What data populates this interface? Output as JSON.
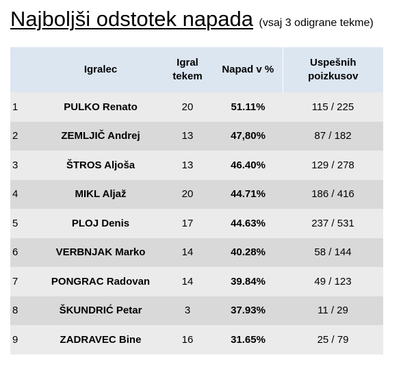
{
  "title": {
    "main": "Najboljši odstotek napada",
    "subtitle": "(vsaj 3 odigrane tekme)"
  },
  "headers": {
    "player": "Igralec",
    "games_line1": "Igral",
    "games_line2": "tekem",
    "attack_pct": "Napad v %",
    "successful_line1": "Uspešnih",
    "successful_line2": "poizkusov"
  },
  "rows": [
    {
      "rank": "1",
      "name": "PULKO Renato",
      "games": "20",
      "pct": "51.11%",
      "attempts": "115 / 225"
    },
    {
      "rank": "2",
      "name": "ZEMLJIČ Andrej",
      "games": "13",
      "pct": "47,80%",
      "attempts": "87 / 182"
    },
    {
      "rank": "3",
      "name": "ŠTROS Aljoša",
      "games": "13",
      "pct": "46.40%",
      "attempts": "129 / 278"
    },
    {
      "rank": "4",
      "name": "MIKL Aljaž",
      "games": "20",
      "pct": "44.71%",
      "attempts": "186 / 416"
    },
    {
      "rank": "5",
      "name": "PLOJ Denis",
      "games": "17",
      "pct": "44.63%",
      "attempts": "237 / 531"
    },
    {
      "rank": "6",
      "name": "VERBNJAK Marko",
      "games": "14",
      "pct": "40.28%",
      "attempts": "58 / 144"
    },
    {
      "rank": "7",
      "name": "PONGRAC Radovan",
      "games": "14",
      "pct": "39.84%",
      "attempts": "49 / 123"
    },
    {
      "rank": "8",
      "name": "ŠKUNDRIĆ Petar",
      "games": "3",
      "pct": "37.93%",
      "attempts": "11 / 29"
    },
    {
      "rank": "9",
      "name": "ZADRAVEC Bine",
      "games": "16",
      "pct": "31.65%",
      "attempts": "25 / 79"
    }
  ],
  "colors": {
    "header_bg": "#dce6f1",
    "row_light": "#ebebeb",
    "row_dark": "#d9d9d9"
  }
}
